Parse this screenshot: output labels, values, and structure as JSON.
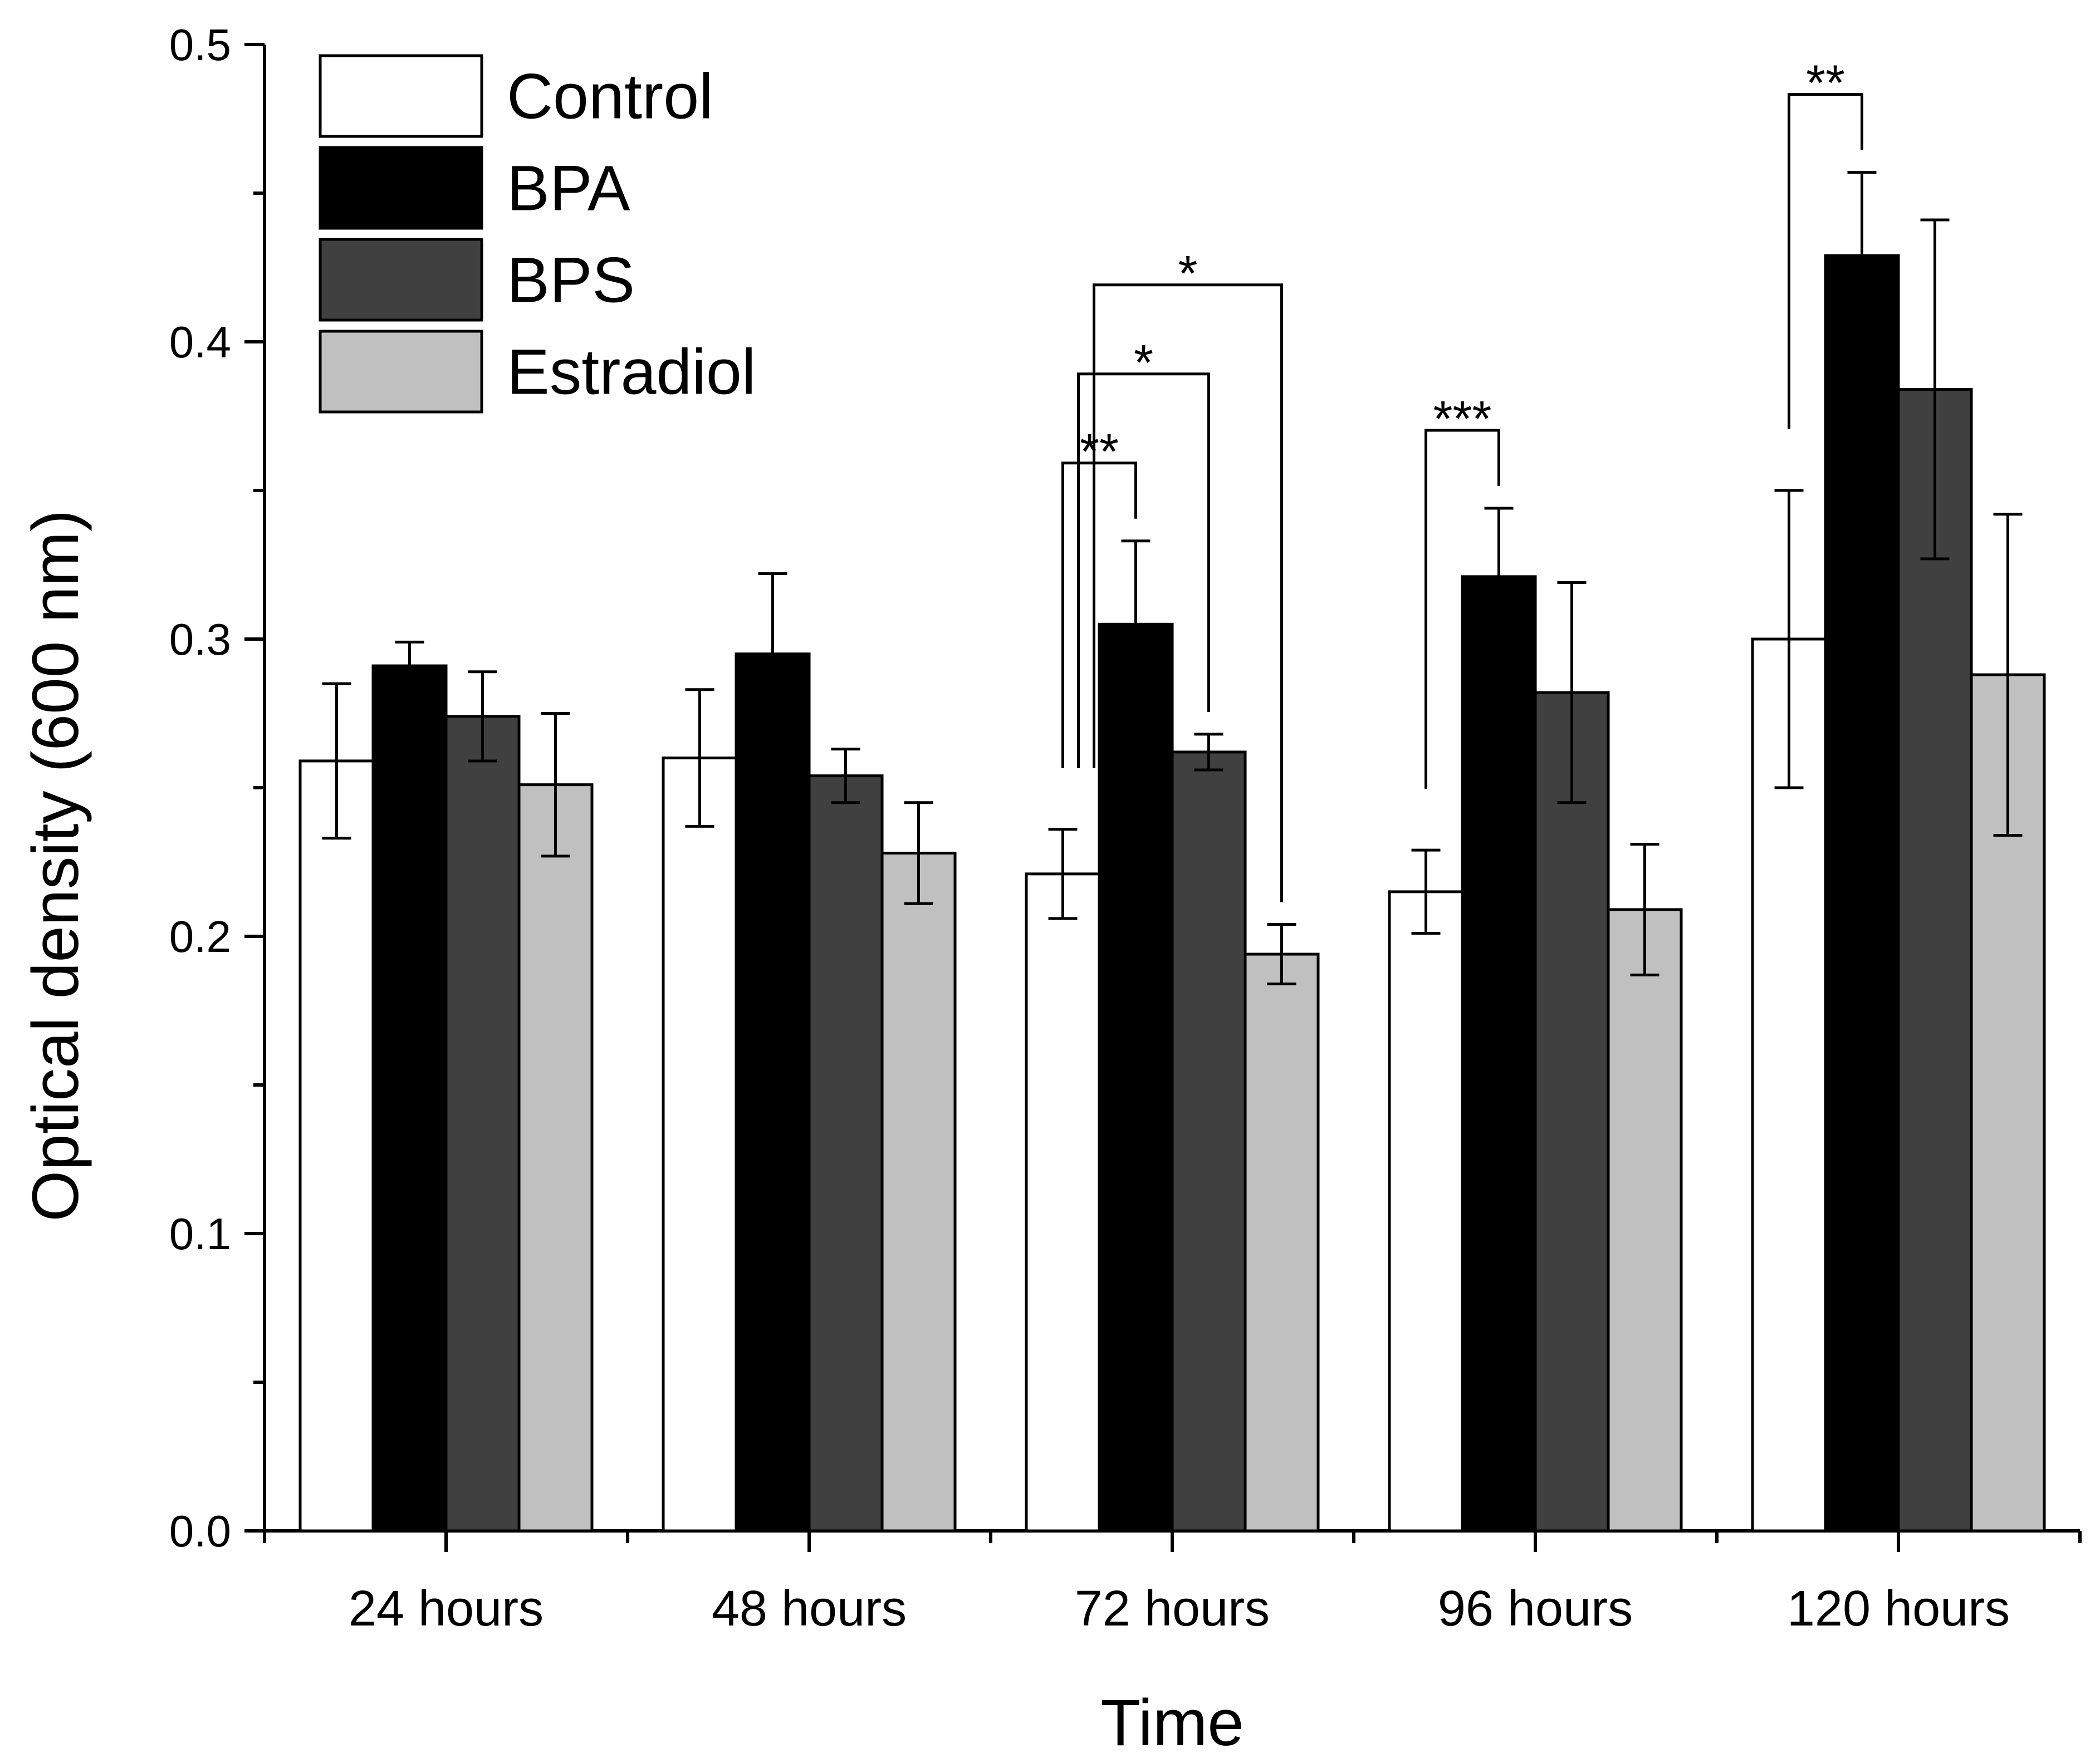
{
  "chart_data": {
    "type": "bar",
    "title": "",
    "xlabel": "Time",
    "ylabel": "Optical density (600 nm)",
    "ylim": [
      0,
      0.5
    ],
    "yticks": [
      "0.0",
      "0.1",
      "0.2",
      "0.3",
      "0.4",
      "0.5"
    ],
    "categories": [
      "24 hours",
      "48 hours",
      "72 hours",
      "96 hours",
      "120 hours"
    ],
    "series": [
      {
        "name": "Control",
        "color": "#ffffff",
        "values": [
          0.259,
          0.26,
          0.221,
          0.215,
          0.3
        ],
        "errors": [
          0.026,
          0.023,
          0.015,
          0.014,
          0.05
        ]
      },
      {
        "name": "BPA",
        "color": "#000000",
        "values": [
          0.291,
          0.295,
          0.305,
          0.321,
          0.429
        ],
        "errors": [
          0.008,
          0.027,
          0.028,
          0.023,
          0.028
        ]
      },
      {
        "name": "BPS",
        "color": "#404040",
        "values": [
          0.274,
          0.254,
          0.262,
          0.282,
          0.384
        ],
        "errors": [
          0.015,
          0.009,
          0.006,
          0.037,
          0.057
        ]
      },
      {
        "name": "Estradiol",
        "color": "#c0c0c0",
        "values": [
          0.251,
          0.228,
          0.194,
          0.209,
          0.288
        ],
        "errors": [
          0.024,
          0.017,
          0.01,
          0.022,
          0.054
        ]
      }
    ],
    "legend": {
      "position": "top-left",
      "entries": [
        "Control",
        "BPA",
        "BPS",
        "Estradiol"
      ]
    },
    "significance": [
      {
        "category": "72 hours",
        "from": "Control",
        "to": "BPA",
        "label": "**"
      },
      {
        "category": "72 hours",
        "from": "Control",
        "to": "BPS",
        "label": "*"
      },
      {
        "category": "72 hours",
        "from": "Control",
        "to": "Estradiol",
        "label": "*"
      },
      {
        "category": "96 hours",
        "from": "Control",
        "to": "BPA",
        "label": "***"
      },
      {
        "category": "120 hours",
        "from": "Control",
        "to": "BPA",
        "label": "**"
      }
    ]
  }
}
